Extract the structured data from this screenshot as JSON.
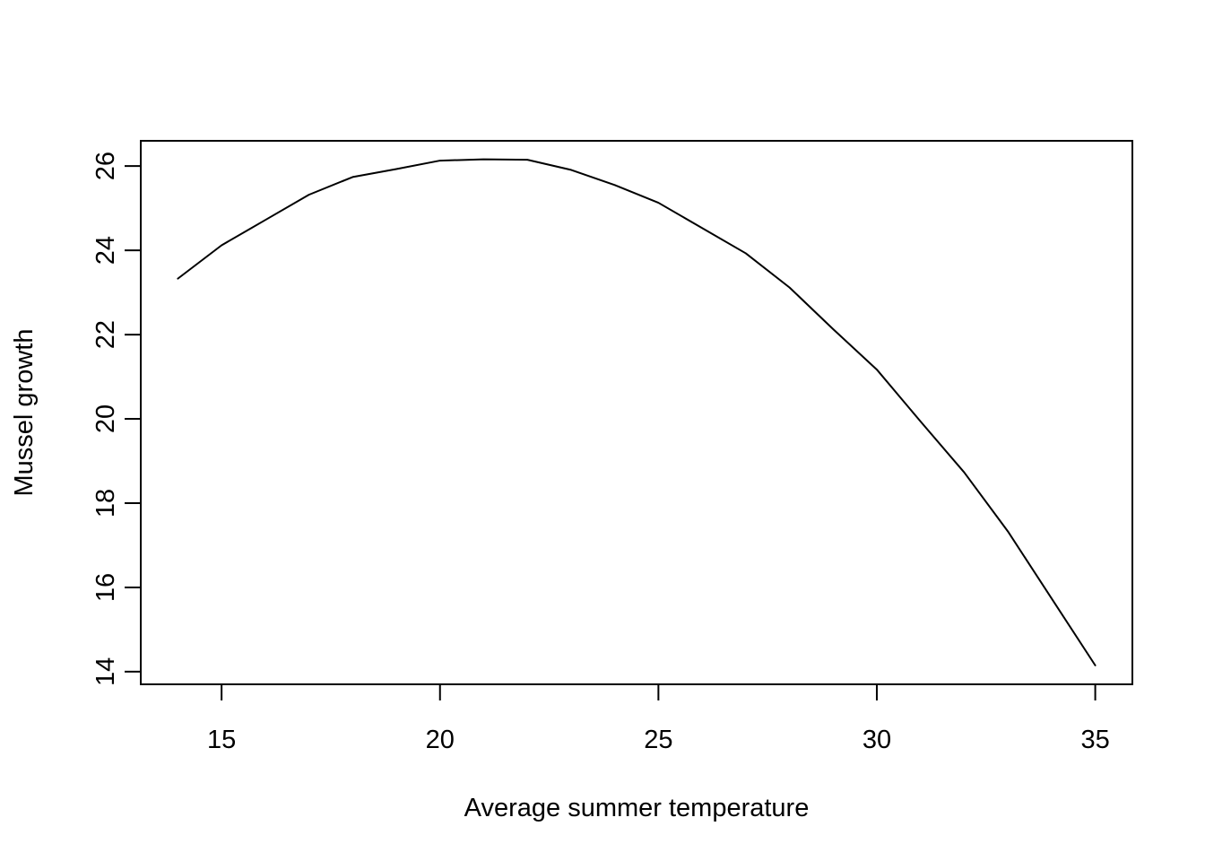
{
  "chart_data": {
    "type": "line",
    "title": "",
    "xlabel": "Average summer temperature",
    "ylabel": "Mussel growth",
    "xlim": [
      13.15,
      35.85
    ],
    "ylim": [
      13.7,
      26.6
    ],
    "xticks": [
      15,
      20,
      25,
      30,
      35
    ],
    "yticks": [
      14,
      16,
      18,
      20,
      22,
      24,
      26
    ],
    "grid": false,
    "legend": "none",
    "line_color": "#000000",
    "series": [
      {
        "x": [
          14,
          15,
          16,
          17,
          18,
          19,
          20,
          21,
          22,
          23,
          24,
          25,
          26,
          27,
          28,
          29,
          30,
          31,
          32,
          33,
          34,
          35
        ],
        "values": [
          23.33,
          24.12,
          24.72,
          25.32,
          25.74,
          25.93,
          26.13,
          26.16,
          26.15,
          25.91,
          25.55,
          25.13,
          24.53,
          23.93,
          23.12,
          22.13,
          21.17,
          19.94,
          18.73,
          17.33,
          15.74,
          14.15
        ]
      }
    ]
  }
}
